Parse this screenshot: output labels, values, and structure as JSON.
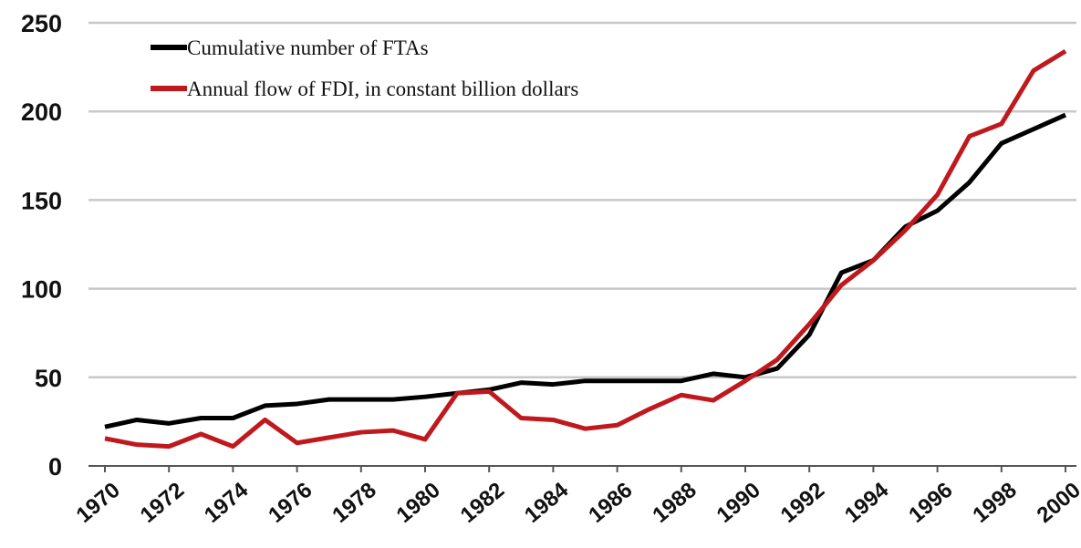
{
  "chart_data": {
    "type": "line",
    "x": [
      1970,
      1971,
      1972,
      1973,
      1974,
      1975,
      1976,
      1977,
      1978,
      1979,
      1980,
      1981,
      1982,
      1983,
      1984,
      1985,
      1986,
      1987,
      1988,
      1989,
      1990,
      1991,
      1992,
      1993,
      1994,
      1995,
      1996,
      1997,
      1998,
      1999,
      2000
    ],
    "series": [
      {
        "name": "Cumulative number of FTAs",
        "color": "#000000",
        "values": [
          22,
          26,
          24,
          27,
          27,
          34,
          35,
          37.5,
          37.5,
          37.5,
          39,
          41,
          43,
          47,
          46,
          48,
          48,
          48,
          48,
          52,
          50,
          55,
          74,
          109,
          116,
          135,
          144,
          160,
          182,
          190,
          198
        ]
      },
      {
        "name": "Annual flow of FDI, in constant billion dollars",
        "color": "#c0191d",
        "values": [
          15.5,
          12,
          11,
          18,
          11,
          26,
          13,
          16,
          19,
          20,
          15,
          41,
          42,
          27,
          26,
          21,
          23,
          32,
          40,
          37,
          48,
          60,
          80,
          102,
          116,
          133,
          153,
          186,
          193,
          223,
          234
        ]
      }
    ],
    "xlim": [
      1970,
      2000
    ],
    "xticks": [
      1970,
      1972,
      1974,
      1976,
      1978,
      1980,
      1982,
      1984,
      1986,
      1988,
      1990,
      1992,
      1994,
      1996,
      1998,
      2000
    ],
    "ylim": [
      0,
      250
    ],
    "yticks": [
      0,
      50,
      100,
      150,
      200,
      250
    ],
    "grid": true,
    "legend": "top-left"
  }
}
